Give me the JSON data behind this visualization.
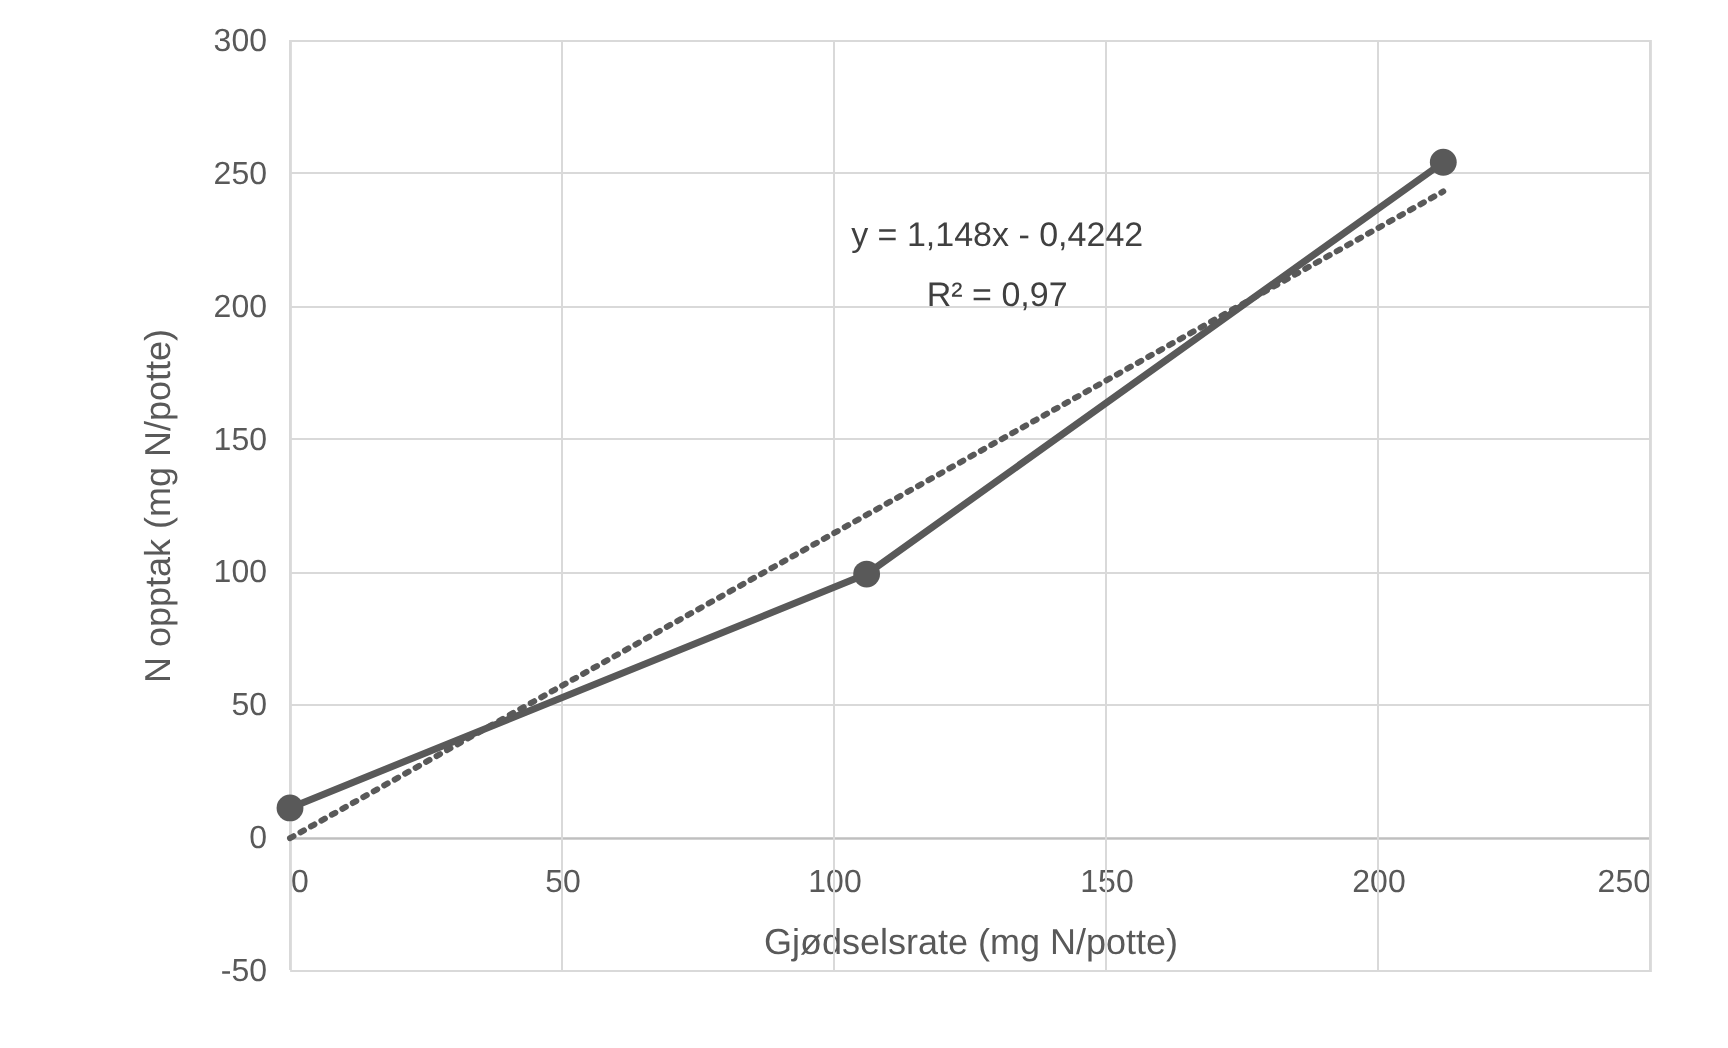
{
  "chart_data": {
    "type": "line",
    "xlabel": "Gjødselsrate (mg N/potte)",
    "ylabel": "N opptak (mg N/potte)",
    "x": [
      0,
      106,
      212
    ],
    "series": [
      {
        "color": "#595959",
        "values": [
          11,
          99,
          254
        ],
        "marker": "circle",
        "line_style": "solid"
      },
      {
        "type": "line",
        "color": "#595959",
        "x": [
          0,
          212
        ],
        "values": [
          -0.4,
          243
        ],
        "marker": "none",
        "line_style": "dotted"
      }
    ],
    "annotations": [
      "y = 1,148x - 0,4242",
      "R² = 0,97"
    ],
    "xlim": [
      0,
      250
    ],
    "xticks": [
      0,
      50,
      100,
      150,
      200,
      250
    ],
    "ylim": [
      -50,
      300
    ],
    "yticks": [
      -50,
      0,
      50,
      100,
      150,
      200,
      250,
      300
    ],
    "grid": true
  }
}
